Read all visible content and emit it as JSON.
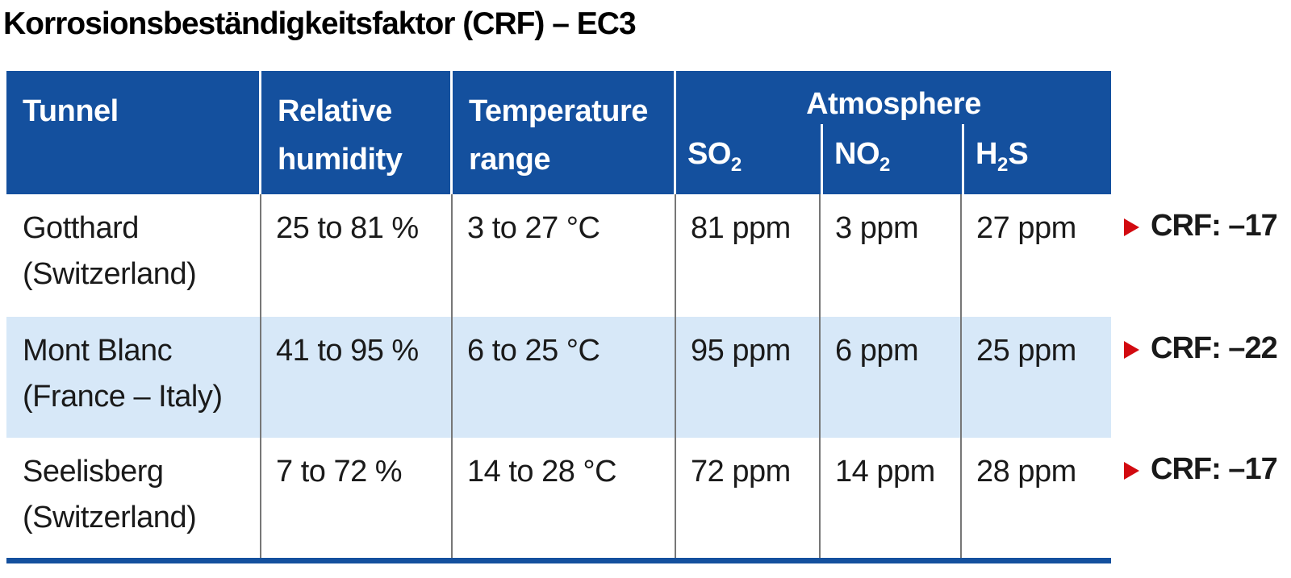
{
  "title": "Korrosionsbeständigkeitsfaktor (CRF) – EC3",
  "colors": {
    "header_blue": "#14509e",
    "row_alt_blue": "#d7e8f8",
    "accent_red": "#d20a10",
    "divider_gray": "#777777",
    "text_dark": "#1a1a1a"
  },
  "table": {
    "columns": {
      "tunnel": "Tunnel",
      "humidity_l1": "Relative",
      "humidity_l2": "humidity",
      "temp_l1": "Temperature",
      "temp_l2": "range",
      "atmosphere": "Atmosphere",
      "so2": {
        "base": "SO",
        "sub": "2",
        "post": ""
      },
      "no2": {
        "base": "NO",
        "sub": "2",
        "post": ""
      },
      "h2s": {
        "base": "H",
        "sub": "2",
        "post": "S"
      }
    },
    "rows": [
      {
        "name_l1": "Gotthard",
        "name_l2": "(Switzerland)",
        "humidity": "25 to 81 %",
        "temperature": "3 to 27 °C",
        "so2": "81 ppm",
        "no2": "3 ppm",
        "h2s": "27 ppm",
        "crf": "CRF: –17"
      },
      {
        "name_l1": "Mont Blanc",
        "name_l2": "(France – Italy)",
        "humidity": "41 to 95 %",
        "temperature": "6 to 25 °C",
        "so2": "95 ppm",
        "no2": "6 ppm",
        "h2s": "25 ppm",
        "crf": "CRF: –22"
      },
      {
        "name_l1": "Seelisberg",
        "name_l2": "(Switzerland)",
        "humidity": "7 to 72 %",
        "temperature": "14 to 28 °C",
        "so2": "72 ppm",
        "no2": "14 ppm",
        "h2s": "28 ppm",
        "crf": "CRF: –17"
      }
    ]
  }
}
